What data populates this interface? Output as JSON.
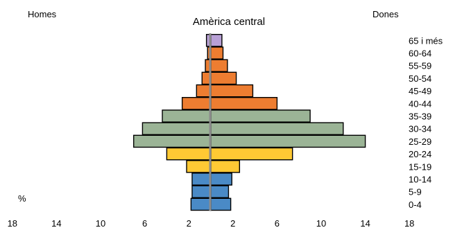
{
  "chart_data": {
    "type": "bar",
    "title": "Amèrica central",
    "left_label": "Homes",
    "right_label": "Dones",
    "unit_label": "%",
    "xlim": [
      -18,
      18
    ],
    "x_ticks": [
      -18,
      -14,
      -10,
      -6,
      -2,
      2,
      6,
      10,
      14,
      18
    ],
    "x_tick_labels": [
      "18",
      "14",
      "10",
      "6",
      "2",
      "2",
      "6",
      "10",
      "14",
      "18"
    ],
    "categories": [
      "0-4",
      "5-9",
      "10-14",
      "15-19",
      "20-24",
      "25-29",
      "30-34",
      "35-39",
      "40-44",
      "45-49",
      "50-54",
      "55-59",
      "60-64",
      "65 i més"
    ],
    "series": [
      {
        "name": "Homes",
        "values": [
          1.8,
          1.7,
          1.7,
          2.2,
          4.0,
          7.0,
          6.2,
          4.4,
          2.6,
          1.3,
          0.8,
          0.5,
          0.3,
          0.4
        ]
      },
      {
        "name": "Dones",
        "values": [
          1.8,
          1.6,
          1.9,
          2.6,
          7.4,
          14.0,
          12.0,
          9.0,
          6.0,
          3.8,
          2.3,
          1.5,
          1.1,
          1.0
        ]
      }
    ],
    "group_colors": {
      "0-14": "#4a8ac6",
      "15-24": "#ffc934",
      "25-39": "#9bb496",
      "40-64": "#ed7d31",
      "65+": "#b8a0d6"
    },
    "grid": false
  }
}
